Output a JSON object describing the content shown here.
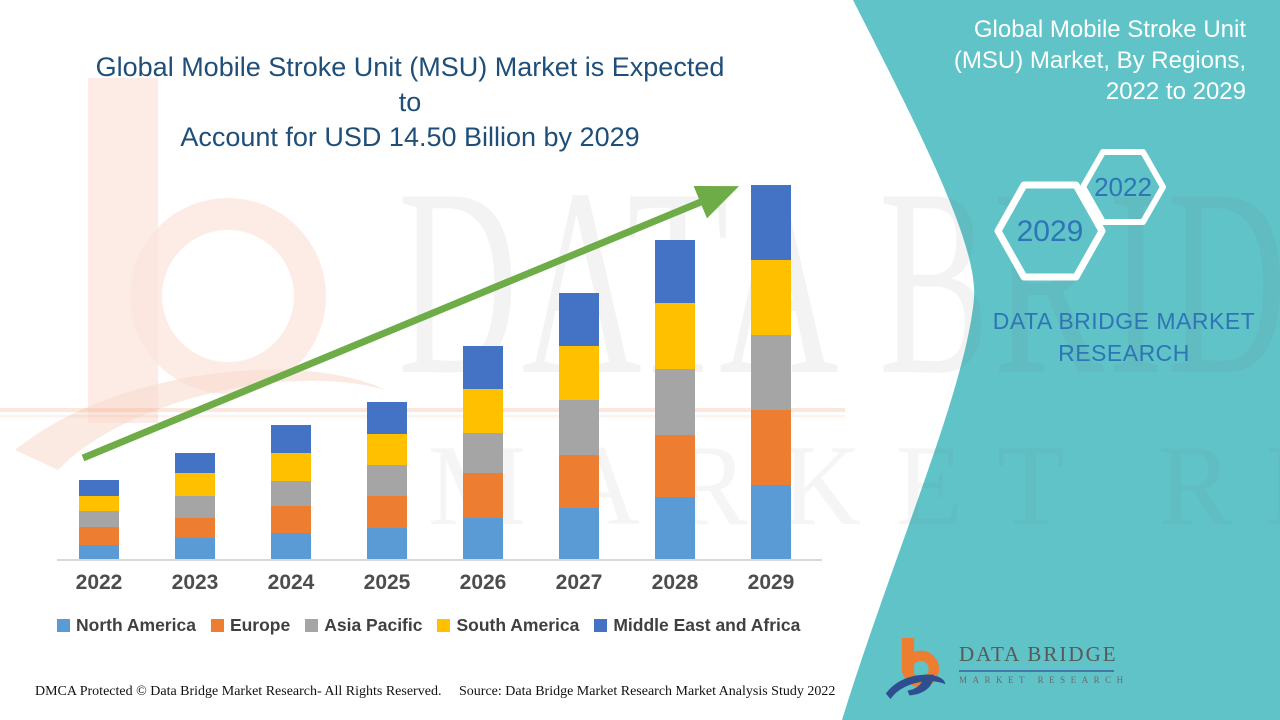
{
  "header": {
    "title_line1": "Global Mobile Stroke Unit (MSU) Market is Expected to",
    "title_line2": "Account for USD 14.50 Billion by 2029",
    "title_color": "#1F4E79"
  },
  "chart_data": {
    "type": "bar",
    "stacked": true,
    "title": "Global Mobile Stroke Unit (MSU) Market is Expected to Account for USD 14.50 Billion by 2029",
    "unit": "USD Billion",
    "values_note": "values estimated from bar heights; 2029 total stated as USD 14.50 Billion",
    "categories": [
      "2022",
      "2023",
      "2024",
      "2025",
      "2026",
      "2027",
      "2028",
      "2029"
    ],
    "series": [
      {
        "name": "North America",
        "color": "#5B9BD5",
        "values": [
          0.58,
          0.85,
          1.04,
          1.24,
          1.62,
          2.01,
          2.44,
          2.9
        ]
      },
      {
        "name": "Europe",
        "color": "#ED7D31",
        "values": [
          0.7,
          0.77,
          1.04,
          1.24,
          1.74,
          2.05,
          2.4,
          2.9
        ]
      },
      {
        "name": "Asia Pacific",
        "color": "#A5A5A5",
        "values": [
          0.62,
          0.85,
          0.97,
          1.2,
          1.55,
          2.13,
          2.55,
          2.9
        ]
      },
      {
        "name": "South America",
        "color": "#FFC000",
        "values": [
          0.58,
          0.89,
          1.08,
          1.2,
          1.7,
          2.09,
          2.55,
          2.9
        ]
      },
      {
        "name": "Middle East and Africa",
        "color": "#4472C4",
        "values": [
          0.62,
          0.77,
          1.08,
          1.24,
          1.66,
          2.05,
          2.44,
          2.9
        ]
      }
    ],
    "totals": [
      3.1,
      4.13,
      5.21,
      6.12,
      8.27,
      10.33,
      12.38,
      14.5
    ],
    "ylim": [
      0,
      14.5
    ],
    "y_axis_visible": false,
    "grid": false,
    "legend_position": "bottom",
    "trend_arrow": true,
    "trend_arrow_color": "#6EAC47"
  },
  "side_panel": {
    "title": "Global Mobile Stroke Unit (MSU) Market, By Regions, 2022 to 2029",
    "hexagon_front_label": "2029",
    "hexagon_back_label": "2022",
    "brand_text": "DATA BRIDGE MARKET RESEARCH",
    "background_color": "#5FC3C8",
    "text_color": "#2E75B6"
  },
  "footer": {
    "dmca_text": "DMCA Protected © Data Bridge Market Research- All Rights Reserved.",
    "source_text": "Source: Data Bridge Market Research Market Analysis Study 2022"
  },
  "logo": {
    "brand": "DATA BRIDGE",
    "sub_brand": "MARKET RESEARCH"
  },
  "watermark": {
    "line1": "DATA BRIDGE",
    "line2": "MARKET RESEARCH"
  }
}
